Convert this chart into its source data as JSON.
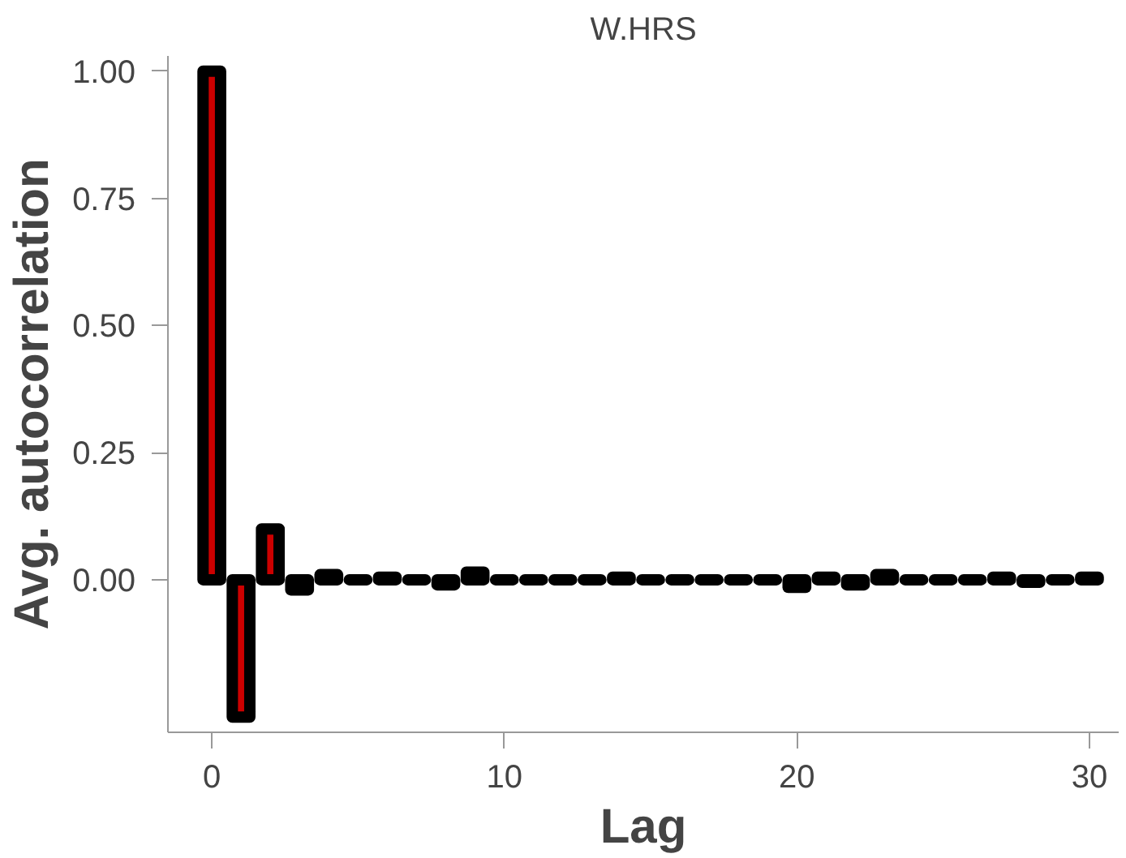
{
  "chart_data": {
    "type": "bar",
    "title": "W.HRS",
    "xlabel": "Lag",
    "ylabel": "Avg. autocorrelation",
    "x": [
      0,
      1,
      2,
      3,
      4,
      5,
      6,
      7,
      8,
      9,
      10,
      11,
      12,
      13,
      14,
      15,
      16,
      17,
      18,
      19,
      20,
      21,
      22,
      23,
      24,
      25,
      26,
      27,
      28,
      29,
      30
    ],
    "values": [
      1.0,
      -0.27,
      0.1,
      -0.02,
      0.01,
      0.0,
      0.005,
      0.0,
      -0.01,
      0.015,
      0.0,
      0.0,
      0.0,
      0.0,
      0.005,
      0.0,
      0.0,
      0.0,
      0.0,
      0.0,
      -0.015,
      0.005,
      -0.01,
      0.01,
      0.0,
      0.0,
      0.0,
      0.005,
      -0.005,
      0.0,
      0.005
    ],
    "color": "#000000",
    "xlim": [
      -1.5,
      31
    ],
    "ylim": [
      -0.3,
      1.03
    ],
    "xticks": [
      0,
      10,
      20,
      30
    ],
    "yticks": [
      {
        "value": 0,
        "label": "0.00"
      },
      {
        "value": 0.25,
        "label": "0.25"
      },
      {
        "value": 0.5,
        "label": "0.50"
      },
      {
        "value": 0.75,
        "label": "0.75"
      },
      {
        "value": 1,
        "label": "1.00"
      }
    ],
    "grid": false
  }
}
